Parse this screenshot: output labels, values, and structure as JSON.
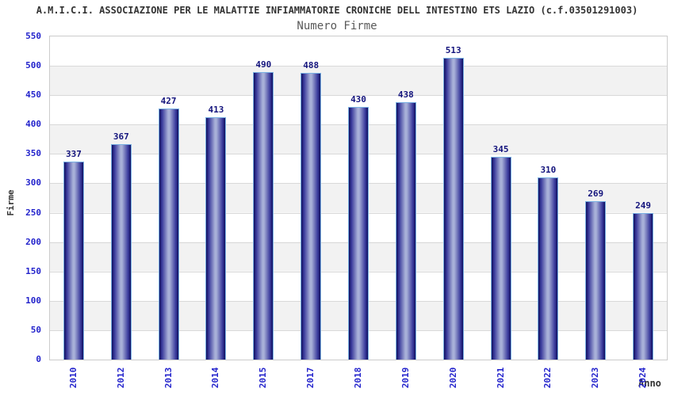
{
  "header": {
    "title": "A.M.I.C.I. ASSOCIAZIONE PER LE MALATTIE INFIAMMATORIE CRONICHE DELL INTESTINO ETS LAZIO (c.f.03501291003)",
    "subtitle": "Numero Firme"
  },
  "chart_data": {
    "type": "bar",
    "title": "Numero Firme",
    "categories": [
      "2010",
      "2012",
      "2013",
      "2014",
      "2015",
      "2017",
      "2018",
      "2019",
      "2020",
      "2021",
      "2022",
      "2023",
      "2024"
    ],
    "values": [
      337,
      367,
      427,
      413,
      490,
      488,
      430,
      438,
      513,
      345,
      310,
      269,
      249
    ],
    "xlabel": "Anno",
    "ylabel": "Firme",
    "ylim": [
      0,
      550
    ],
    "ytick_step": 50,
    "ytick_labels": [
      "0",
      "50",
      "100",
      "150",
      "200",
      "250",
      "300",
      "350",
      "400",
      "450",
      "500",
      "550"
    ],
    "grid": true,
    "legend": "none",
    "plot_style": "vertical cylinder-gradient bars on alternating white/gray horizontal bands",
    "colors": {
      "bar_edge_dark": "#10105f",
      "bar_mid": "#3a3a9c",
      "bar_center_light": "#a8b0d8",
      "bar_border": "#7ab1e3",
      "tick_label": "#2424cc",
      "value_label": "#14147d",
      "axis_title": "#333333",
      "title_text": "#333333",
      "subtitle_text": "#595959",
      "band_white": "#ffffff",
      "band_gray": "#f2f2f2",
      "gridline": "#d9d9d9",
      "plot_border": "#cccccc",
      "background": "#ffffff"
    }
  }
}
